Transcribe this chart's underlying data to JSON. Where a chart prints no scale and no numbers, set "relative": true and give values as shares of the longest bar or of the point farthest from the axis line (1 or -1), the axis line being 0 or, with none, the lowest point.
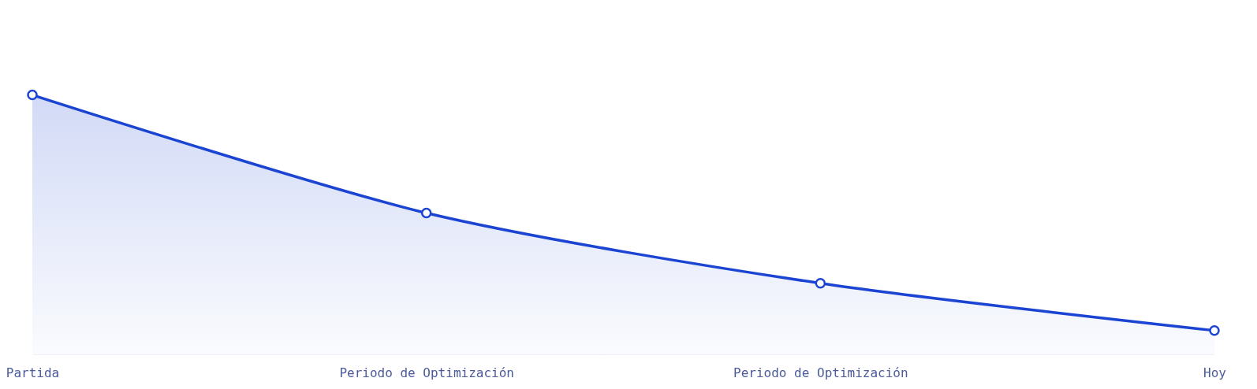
{
  "chart_data": {
    "type": "area",
    "relative": true,
    "categories": [
      "Partida",
      "Periodo de Optimización",
      "Periodo de Optimización",
      "Hoy"
    ],
    "series": [
      {
        "color": "#1a44d1",
        "values": [
          1,
          0.545,
          0.274,
          0.092
        ]
      }
    ],
    "marker": "circle"
  }
}
